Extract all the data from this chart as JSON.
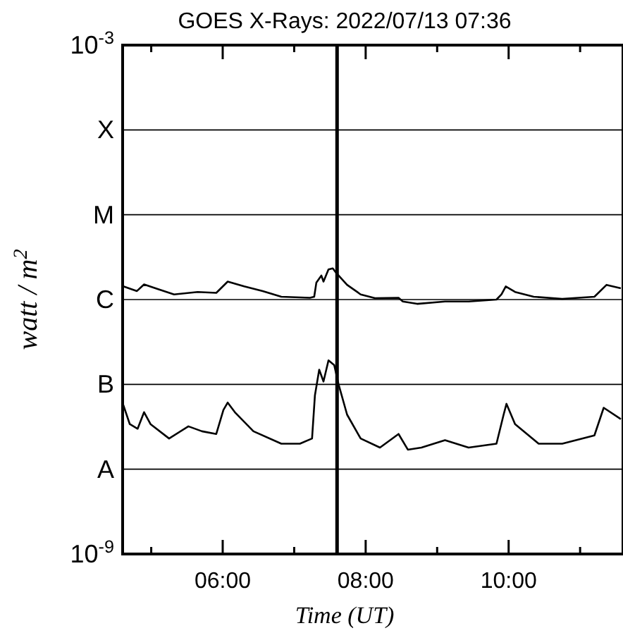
{
  "chart_data": {
    "type": "line",
    "title": "GOES X-Rays: 2022/07/13 07:36",
    "xlabel": "Time (UT)",
    "ylabel": "watt / m$^{2}$",
    "log": "y",
    "grid": "y",
    "marker": "none",
    "line_style": "solid",
    "xlim": [
      4.6,
      11.6
    ],
    "xticks": [
      {
        "value": 5,
        "label": null
      },
      {
        "value": 6,
        "label": "06:00"
      },
      {
        "value": 7,
        "label": null
      },
      {
        "value": 8,
        "label": "08:00"
      },
      {
        "value": 9,
        "label": null
      },
      {
        "value": 10,
        "label": "10:00"
      },
      {
        "value": 11,
        "label": null
      }
    ],
    "ylim": [
      1e-09,
      0.001
    ],
    "yticks": [
      {
        "value": 1e-09,
        "label": "10$^{-9}$"
      },
      {
        "value": 1e-08,
        "label": "A"
      },
      {
        "value": 1e-07,
        "label": "B"
      },
      {
        "value": 1e-06,
        "label": "C"
      },
      {
        "value": 1e-05,
        "label": "M"
      },
      {
        "value": 0.0001,
        "label": "X"
      },
      {
        "value": 0.001,
        "label": "10$^{-3}$"
      }
    ],
    "ref_lines": [
      {
        "axis": "x",
        "value": 7.6,
        "color": "#000000"
      }
    ],
    "series": [
      {
        "color": "#000000",
        "x": [
          4.61,
          4.8,
          4.9,
          5.06,
          5.32,
          5.65,
          5.91,
          6.07,
          6.3,
          6.56,
          6.82,
          7.22,
          7.28,
          7.31,
          7.38,
          7.41,
          7.48,
          7.54,
          7.59,
          7.74,
          7.93,
          8.13,
          8.46,
          8.52,
          8.72,
          9.11,
          9.44,
          9.83,
          9.9,
          9.96,
          10.09,
          10.35,
          10.75,
          11.2,
          11.37,
          11.57
        ],
        "values": [
          1.43e-06,
          1.26e-06,
          1.51e-06,
          1.36e-06,
          1.15e-06,
          1.23e-06,
          1.2e-06,
          1.63e-06,
          1.43e-06,
          1.26e-06,
          1.08e-06,
          1.05e-06,
          1.08e-06,
          1.58e-06,
          1.92e-06,
          1.63e-06,
          2.27e-06,
          2.33e-06,
          2.05e-06,
          1.49e-06,
          1.15e-06,
          1.04e-06,
          1.05e-06,
          9.5e-07,
          8.9e-07,
          9.5e-07,
          9.5e-07,
          1e-06,
          1.15e-06,
          1.43e-06,
          1.23e-06,
          1.08e-06,
          1.02e-06,
          1.08e-06,
          1.49e-06,
          1.36e-06
        ]
      },
      {
        "color": "#000000",
        "x": [
          4.61,
          4.7,
          4.81,
          4.9,
          4.99,
          5.25,
          5.52,
          5.71,
          5.91,
          6.01,
          6.07,
          6.17,
          6.43,
          6.82,
          7.08,
          7.25,
          7.29,
          7.35,
          7.41,
          7.48,
          7.56,
          7.62,
          7.74,
          7.93,
          8.2,
          8.46,
          8.59,
          8.78,
          9.11,
          9.44,
          9.83,
          9.93,
          9.97,
          10.09,
          10.42,
          10.75,
          11.2,
          11.33,
          11.57
        ],
        "values": [
          5.7e-08,
          3.4e-08,
          3e-08,
          4.7e-08,
          3.4e-08,
          2.3e-08,
          3.2e-08,
          2.8e-08,
          2.6e-08,
          5e-08,
          6.1e-08,
          4.7e-08,
          2.8e-08,
          2e-08,
          2e-08,
          2.3e-08,
          7.4e-08,
          1.49e-07,
          1.08e-07,
          1.92e-07,
          1.69e-07,
          1.01e-07,
          4.4e-08,
          2.3e-08,
          1.8e-08,
          2.6e-08,
          1.7e-08,
          1.8e-08,
          2.2e-08,
          1.8e-08,
          2e-08,
          4.4e-08,
          5.9e-08,
          3.4e-08,
          2e-08,
          2e-08,
          2.5e-08,
          5.3e-08,
          3.9e-08
        ]
      }
    ]
  }
}
